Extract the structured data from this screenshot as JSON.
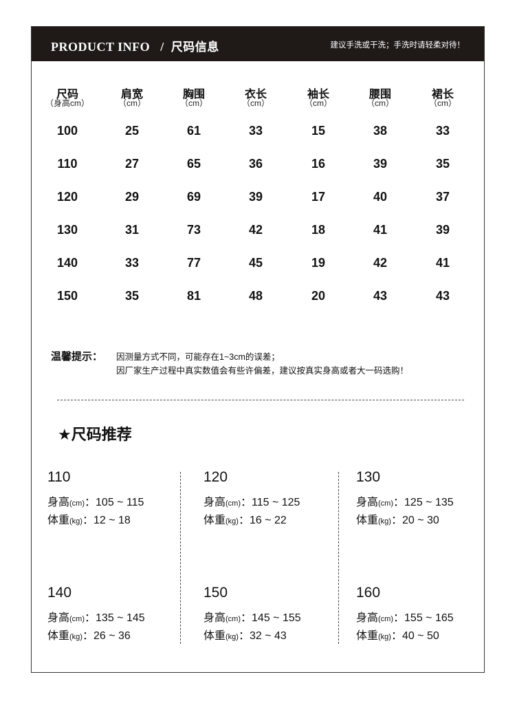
{
  "header": {
    "title_en": "PRODUCT INFO",
    "separator": "/",
    "title_cn": "尺码信息",
    "care_note": "建议手洗或干洗；手洗时请轻柔对待！"
  },
  "table": {
    "columns": [
      {
        "name": "尺码",
        "unit": "（身高cm）"
      },
      {
        "name": "肩宽",
        "unit": "（cm）"
      },
      {
        "name": "胸围",
        "unit": "（cm）"
      },
      {
        "name": "衣长",
        "unit": "（cm）"
      },
      {
        "name": "袖长",
        "unit": "（cm）"
      },
      {
        "name": "腰围",
        "unit": "（cm）"
      },
      {
        "name": "裙长",
        "unit": "（cm）"
      }
    ],
    "rows": [
      [
        "100",
        "25",
        "61",
        "33",
        "15",
        "38",
        "33"
      ],
      [
        "110",
        "27",
        "65",
        "36",
        "16",
        "39",
        "35"
      ],
      [
        "120",
        "29",
        "69",
        "39",
        "17",
        "40",
        "37"
      ],
      [
        "130",
        "31",
        "73",
        "42",
        "18",
        "41",
        "39"
      ],
      [
        "140",
        "33",
        "77",
        "45",
        "19",
        "42",
        "41"
      ],
      [
        "150",
        "35",
        "81",
        "48",
        "20",
        "43",
        "43"
      ]
    ]
  },
  "tips": {
    "label": "温馨提示：",
    "lines": [
      "因测量方式不同，可能存在1~3cm的误差；",
      "因厂家生产过程中真实数值会有些许偏差，建议按真实身高或者大一码选购！"
    ]
  },
  "recommend": {
    "title": "★尺码推荐",
    "height_label": "身高",
    "height_unit": "(cm)",
    "weight_label": "体重",
    "weight_unit": "(kg)",
    "items": [
      {
        "size": "110",
        "height": "：105 ~ 115",
        "weight": "：12 ~ 18"
      },
      {
        "size": "120",
        "height": "：115 ~ 125",
        "weight": "：16 ~ 22"
      },
      {
        "size": "130",
        "height": "：125 ~ 135",
        "weight": "：20 ~ 30"
      },
      {
        "size": "140",
        "height": "：135 ~ 145",
        "weight": "：26 ~ 36"
      },
      {
        "size": "150",
        "height": "：145 ~ 155",
        "weight": "：32 ~ 43"
      },
      {
        "size": "160",
        "height": "：155 ~ 165",
        "weight": "：40 ~ 50"
      }
    ]
  }
}
